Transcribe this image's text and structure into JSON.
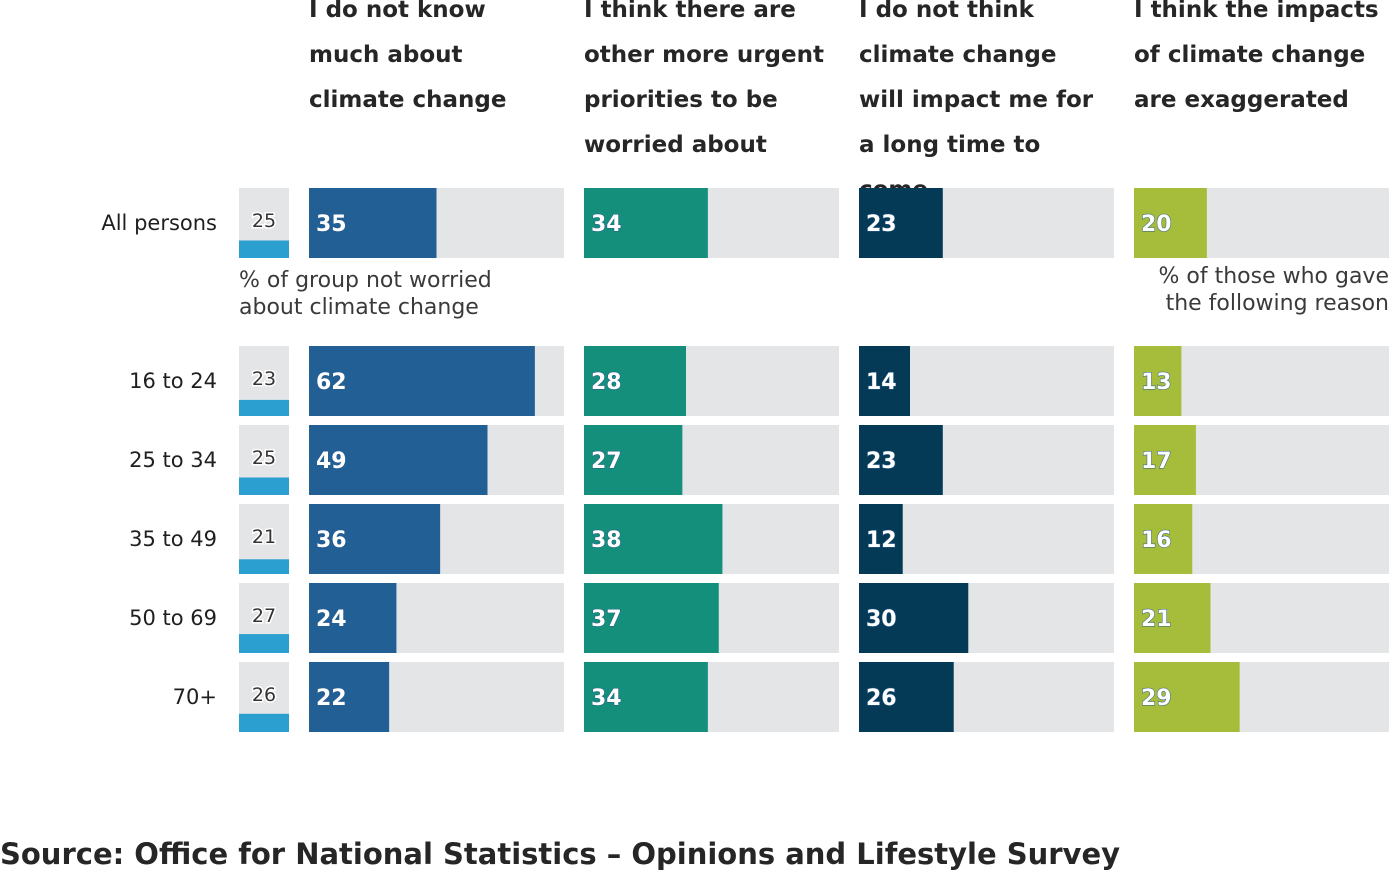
{
  "chart_data": {
    "type": "bar",
    "categories": [
      "All persons",
      "16 to 24",
      "25 to 34",
      "35 to 49",
      "50 to 69",
      "70+"
    ],
    "not_worried": {
      "label": "% of group not worried about climate change",
      "color": "#2a9fd0",
      "values": [
        25,
        23,
        25,
        21,
        27,
        26
      ]
    },
    "series": [
      {
        "name": "I do not know much about climate change",
        "color": "#225f95",
        "values": [
          35,
          62,
          49,
          36,
          24,
          22
        ]
      },
      {
        "name": "I think there are other more urgent priorities to be worried about",
        "color": "#138f7b",
        "values": [
          34,
          28,
          27,
          38,
          37,
          34
        ]
      },
      {
        "name": "I do not think climate change will impact me for a long time to come",
        "color": "#053a57",
        "values": [
          23,
          14,
          23,
          12,
          30,
          26
        ]
      },
      {
        "name": "I think the impacts of climate change are exaggerated",
        "color": "#a5bd3a",
        "values": [
          20,
          13,
          17,
          16,
          21,
          29
        ]
      }
    ],
    "reason_note": "% of those who gave the following reason",
    "ylim": [
      0,
      70
    ],
    "track_color": "#e4e5e7"
  },
  "source": "Source: Office for National Statistics – Opinions and Lifestyle Survey"
}
